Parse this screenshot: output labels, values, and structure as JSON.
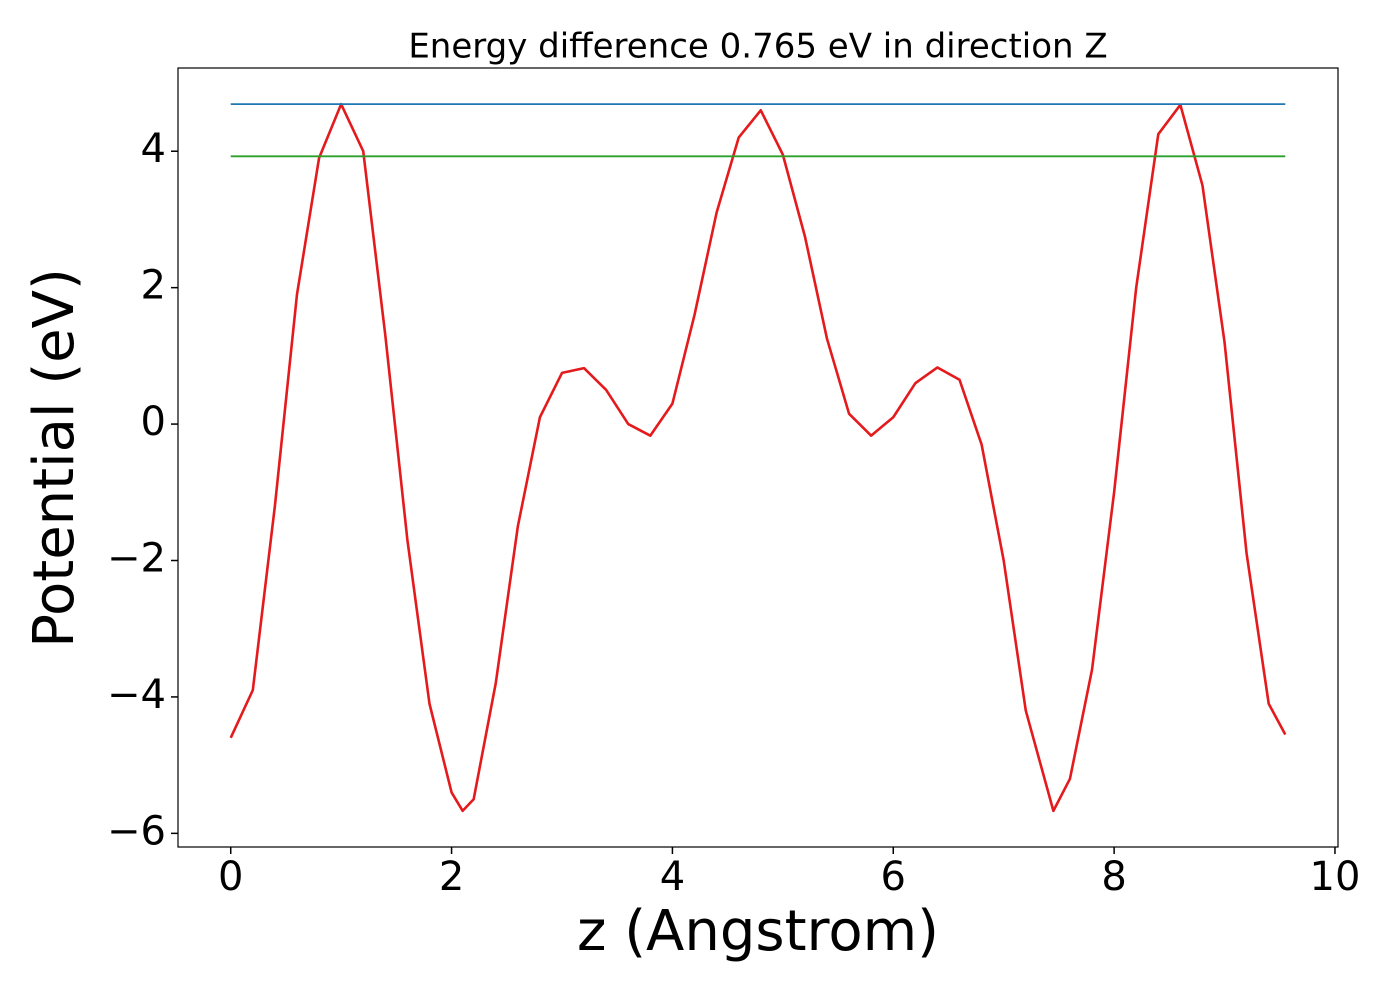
{
  "chart_data": {
    "type": "line",
    "title": "Energy difference 0.765 eV in direction Z",
    "xlabel": "z (Angstrom)",
    "ylabel": "Potential (eV)",
    "xlim": [
      -0.4775,
      10.0275
    ],
    "ylim": [
      -6.2,
      5.22
    ],
    "xticks": [
      0,
      2,
      4,
      6,
      8,
      10
    ],
    "yticks": [
      {
        "value": -6,
        "label": "−6"
      },
      {
        "value": -4,
        "label": "−4"
      },
      {
        "value": -2,
        "label": "−2"
      },
      0,
      2,
      4
    ],
    "series": [
      {
        "color": "#e41a1c",
        "x": [
          0,
          0.2,
          0.4,
          0.6,
          0.8,
          1.0,
          1.2,
          1.4,
          1.6,
          1.8,
          2.0,
          2.1,
          2.2,
          2.4,
          2.6,
          2.8,
          3.0,
          3.2,
          3.4,
          3.6,
          3.8,
          4.0,
          4.2,
          4.4,
          4.6,
          4.8,
          5.0,
          5.2,
          5.4,
          5.6,
          5.8,
          6.0,
          6.2,
          6.4,
          6.6,
          6.8,
          7.0,
          7.2,
          7.45,
          7.6,
          7.8,
          8.0,
          8.2,
          8.4,
          8.6,
          8.8,
          9.0,
          9.2,
          9.4,
          9.55
        ],
        "values": [
          -4.6,
          -3.9,
          -1.2,
          1.9,
          3.9,
          4.69,
          4.0,
          1.3,
          -1.7,
          -4.1,
          -5.4,
          -5.67,
          -5.5,
          -3.8,
          -1.5,
          0.1,
          0.75,
          0.82,
          0.5,
          0.0,
          -0.17,
          0.3,
          1.6,
          3.1,
          4.2,
          4.6,
          3.95,
          2.75,
          1.25,
          0.15,
          -0.17,
          0.1,
          0.6,
          0.83,
          0.65,
          -0.3,
          -2.0,
          -4.2,
          -5.67,
          -5.2,
          -3.6,
          -1.0,
          2.0,
          4.25,
          4.68,
          3.5,
          1.2,
          -1.9,
          -4.1,
          -4.55
        ]
      },
      {
        "color": "#1f77b4",
        "x": [
          0,
          9.55
        ],
        "values": [
          4.69,
          4.69
        ]
      },
      {
        "color": "#2ca02c",
        "x": [
          0,
          9.55
        ],
        "values": [
          3.925,
          3.925
        ]
      }
    ]
  }
}
